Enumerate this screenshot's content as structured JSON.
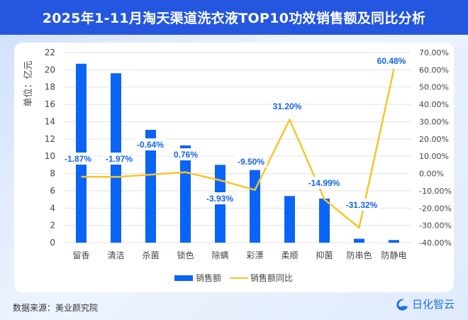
{
  "title": "2025年1-11月淘天渠道洗衣液TOP10功效销售额及同比分析",
  "source": "数据来源：美业颜究院",
  "logo_text": "日化智云",
  "chart_data": {
    "type": "bar+line",
    "categories": [
      "留香",
      "清洁",
      "杀菌",
      "锁色",
      "除螨",
      "彩漂",
      "柔顺",
      "抑菌",
      "防串色",
      "防静电"
    ],
    "ylabel": "单位：亿元",
    "y_ticks": [
      "0",
      "2",
      "4",
      "6",
      "8",
      "10",
      "12",
      "14",
      "16",
      "18",
      "20",
      "22"
    ],
    "ylim": [
      0,
      22
    ],
    "y2_ticks": [
      "-40.00%",
      "-30.00%",
      "-20.00%",
      "-10.00%",
      "0.00%",
      "10.00%",
      "20.00%",
      "30.00%",
      "40.00%",
      "50.00%",
      "60.00%",
      "70.00%"
    ],
    "y2lim": [
      -40,
      70
    ],
    "grid": true,
    "legend_position": "bottom",
    "series": [
      {
        "name": "销售额",
        "type": "bar",
        "axis": "left",
        "color": "#0a64f5",
        "values": [
          20.7,
          19.6,
          13.05,
          11.25,
          9.0,
          8.4,
          5.4,
          5.1,
          0.45,
          0.3
        ]
      },
      {
        "name": "销售额同比",
        "type": "line",
        "axis": "right",
        "color": "#f7c52a",
        "values": [
          -1.87,
          -1.97,
          -0.64,
          0.76,
          -3.93,
          -9.5,
          31.2,
          -14.99,
          -31.32,
          60.48
        ],
        "labels": [
          "-1.87%",
          "-1.97%",
          "-0.64%",
          "0.76%",
          "-3.93%",
          "-9.50%",
          "31.20%",
          "-14.99%",
          "-31.32%",
          "60.48%"
        ]
      }
    ]
  }
}
